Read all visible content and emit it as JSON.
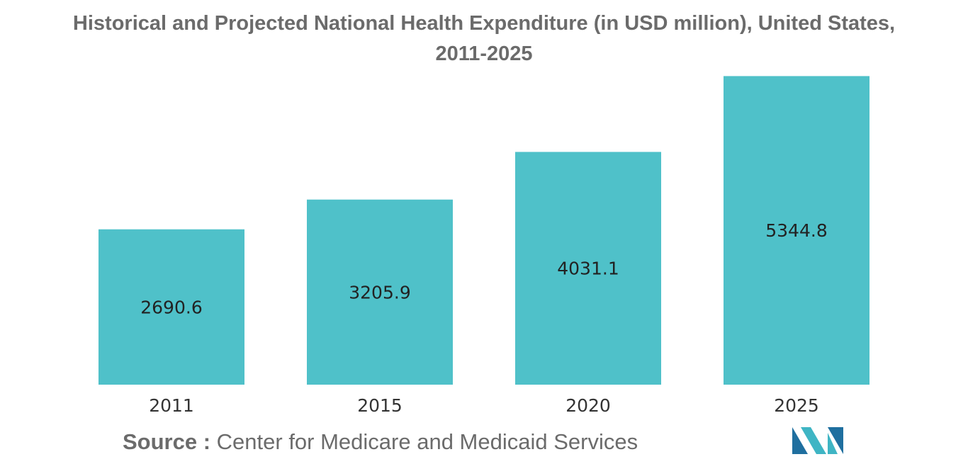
{
  "chart_data": {
    "type": "bar",
    "title_line1": "Historical and Projected National Health Expenditure (in USD million), United States,",
    "title_line2": "2011-2025",
    "categories": [
      "2011",
      "2015",
      "2020",
      "2025"
    ],
    "values": [
      2690.6,
      3205.9,
      4031.1,
      5344.8
    ],
    "value_labels": [
      "2690.6",
      "3205.9",
      "4031.1",
      "5344.8"
    ],
    "bar_color": "#4fc1c9",
    "xlabel": "",
    "ylabel": "",
    "grid": false,
    "legend": "none"
  },
  "source": {
    "prefix": "Source :",
    "text": "Center for Medicare and Medicaid Services"
  },
  "logo": {
    "icon": "mordor-intelligence-logo-icon",
    "colors": [
      "#1f6f9f",
      "#3fb5c4"
    ]
  }
}
